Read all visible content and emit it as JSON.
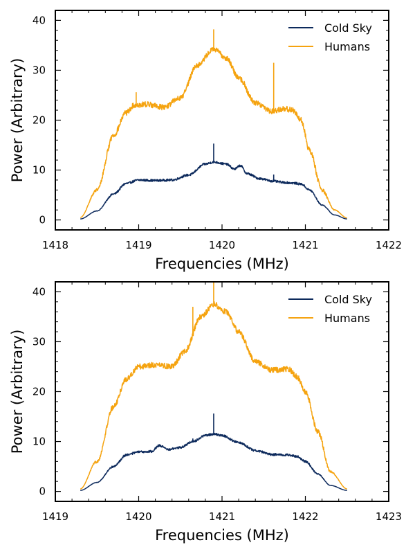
{
  "chart_data": [
    {
      "type": "line",
      "xlabel": "Frequencies (MHz)",
      "ylabel": "Power (Arbitrary)",
      "xlim": [
        1418,
        1422
      ],
      "ylim": [
        -2,
        42
      ],
      "xticks": [
        "1418",
        "1419",
        "1420",
        "1421",
        "1422"
      ],
      "yticks": [
        "0",
        "10",
        "20",
        "30",
        "40"
      ],
      "grid": false,
      "legend_position": "top-right",
      "series": [
        {
          "name": "Cold Sky",
          "color": "#0d2a5c",
          "x": [
            1418.3,
            1418.5,
            1418.7,
            1418.85,
            1419.0,
            1419.2,
            1419.4,
            1419.6,
            1419.8,
            1419.9,
            1420.05,
            1420.15,
            1420.22,
            1420.3,
            1420.45,
            1420.6,
            1420.75,
            1420.85,
            1420.95,
            1421.05,
            1421.2,
            1421.35,
            1421.5
          ],
          "y": [
            0.2,
            1.8,
            5.2,
            7.3,
            8.0,
            7.9,
            8.0,
            9.0,
            11.2,
            11.6,
            11.2,
            10.2,
            10.9,
            9.3,
            8.3,
            7.8,
            7.5,
            7.4,
            7.2,
            6.0,
            3.0,
            1.0,
            0.2
          ],
          "spikes": [
            [
              1419.9,
              15.3
            ],
            [
              1420.62,
              9.1
            ]
          ]
        },
        {
          "name": "Humans",
          "color": "#f5a30f",
          "x": [
            1418.3,
            1418.5,
            1418.7,
            1418.85,
            1418.95,
            1419.1,
            1419.3,
            1419.5,
            1419.7,
            1419.9,
            1420.05,
            1420.2,
            1420.4,
            1420.6,
            1420.75,
            1420.85,
            1420.95,
            1421.05,
            1421.2,
            1421.35,
            1421.5
          ],
          "y": [
            0.5,
            6.0,
            17.0,
            21.5,
            23.0,
            23.2,
            22.6,
            24.5,
            31.0,
            34.2,
            32.5,
            28.5,
            23.5,
            21.8,
            22.3,
            22.0,
            20.0,
            14.0,
            6.0,
            2.0,
            0.4
          ],
          "spikes": [
            [
              1418.97,
              25.6
            ],
            [
              1419.9,
              38.2
            ],
            [
              1420.62,
              31.5
            ]
          ]
        }
      ]
    },
    {
      "type": "line",
      "xlabel": "Frequencies (MHz)",
      "ylabel": "Power (Arbitrary)",
      "xlim": [
        1419,
        1423
      ],
      "ylim": [
        -2,
        42
      ],
      "xticks": [
        "1419",
        "1420",
        "1421",
        "1422",
        "1423"
      ],
      "yticks": [
        "0",
        "10",
        "20",
        "30",
        "40"
      ],
      "grid": false,
      "legend_position": "top-right",
      "series": [
        {
          "name": "Cold Sky",
          "color": "#0d2a5c",
          "x": [
            1419.3,
            1419.5,
            1419.7,
            1419.85,
            1420.0,
            1420.15,
            1420.25,
            1420.35,
            1420.5,
            1420.65,
            1420.8,
            1420.9,
            1421.0,
            1421.2,
            1421.4,
            1421.6,
            1421.8,
            1421.9,
            1422.0,
            1422.15,
            1422.3,
            1422.5
          ],
          "y": [
            0.2,
            1.8,
            5.0,
            7.3,
            7.9,
            8.0,
            9.2,
            8.4,
            8.8,
            10.0,
            11.2,
            11.5,
            11.2,
            9.8,
            8.2,
            7.4,
            7.3,
            7.0,
            6.0,
            3.5,
            1.2,
            0.2
          ],
          "spikes": [
            [
              1420.9,
              15.6
            ],
            [
              1420.65,
              10.6
            ]
          ]
        },
        {
          "name": "Humans",
          "color": "#f5a30f",
          "x": [
            1419.3,
            1419.5,
            1419.7,
            1419.85,
            1420.0,
            1420.2,
            1420.4,
            1420.55,
            1420.75,
            1420.9,
            1421.05,
            1421.2,
            1421.4,
            1421.6,
            1421.8,
            1421.9,
            1422.0,
            1422.15,
            1422.3,
            1422.5
          ],
          "y": [
            0.5,
            6.0,
            17.0,
            22.5,
            25.0,
            25.4,
            25.0,
            28.0,
            35.0,
            37.5,
            36.0,
            32.0,
            26.0,
            24.3,
            24.5,
            23.0,
            20.0,
            12.0,
            4.0,
            0.5
          ],
          "spikes": [
            [
              1420.65,
              37.0
            ],
            [
              1420.9,
              42.0
            ]
          ]
        }
      ]
    }
  ]
}
